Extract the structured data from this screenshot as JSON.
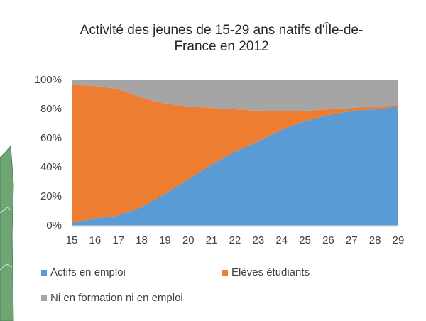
{
  "chart_data": {
    "type": "area",
    "title": "Activité des jeunes de 15-29 ans natifs d'Île-de-France en 2012",
    "categories": [
      "15",
      "16",
      "17",
      "18",
      "19",
      "20",
      "21",
      "22",
      "23",
      "24",
      "25",
      "26",
      "27",
      "28",
      "29"
    ],
    "series": [
      {
        "name": "Actifs en emploi",
        "color": "#5b9bd5",
        "values": [
          2,
          5,
          7,
          13,
          22,
          32,
          42,
          51,
          58,
          66,
          72,
          76,
          79,
          80,
          82
        ]
      },
      {
        "name": "Elèves étudiants",
        "color": "#ed7d31",
        "values": [
          95,
          91,
          87,
          75,
          62,
          50,
          39,
          29,
          21,
          13,
          7,
          4,
          2,
          2,
          1
        ]
      },
      {
        "name": "Ni en formation ni en emploi",
        "color": "#a5a5a5",
        "values": [
          3,
          4,
          6,
          12,
          16,
          18,
          19,
          20,
          21,
          21,
          21,
          20,
          19,
          18,
          17
        ]
      }
    ],
    "stacked": true,
    "ylim": [
      0,
      100
    ],
    "yticks": [
      {
        "value": 0,
        "label": "0%"
      },
      {
        "value": 20,
        "label": "20%"
      },
      {
        "value": 40,
        "label": "40%"
      },
      {
        "value": 60,
        "label": "60%"
      },
      {
        "value": 80,
        "label": "80%"
      },
      {
        "value": 100,
        "label": "100%"
      }
    ],
    "grid": false,
    "legend": "bottom"
  }
}
